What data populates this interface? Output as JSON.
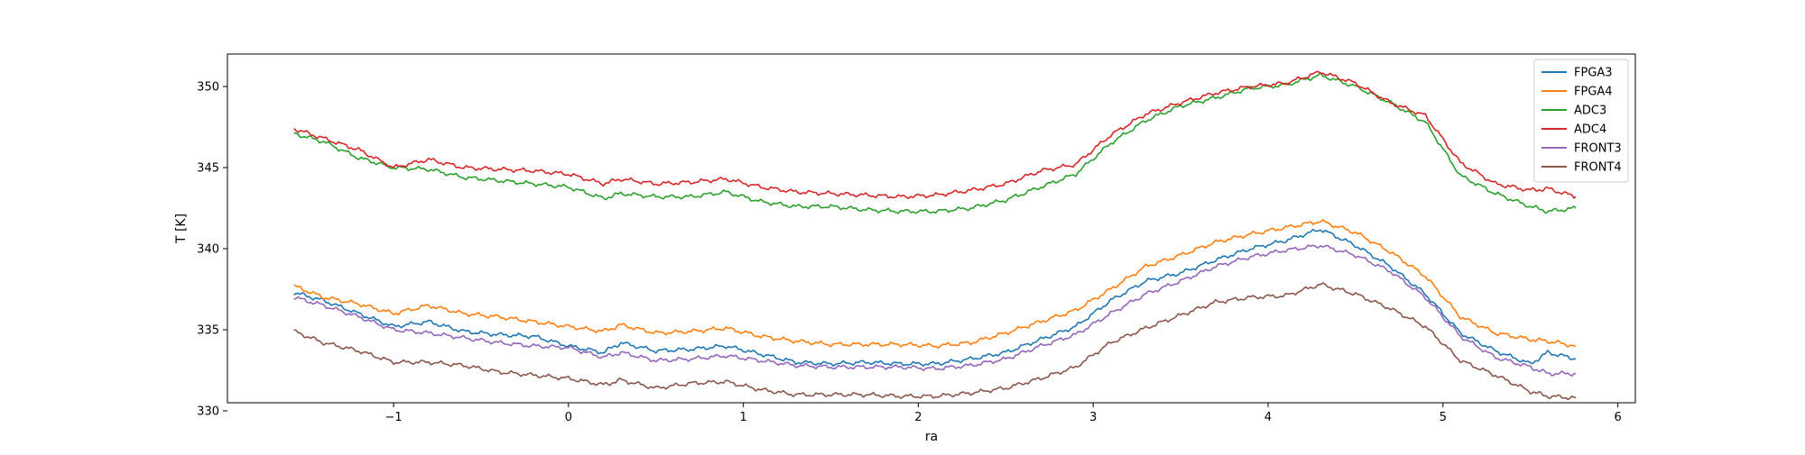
{
  "chart_data": {
    "type": "line",
    "title": "",
    "xlabel": "ra",
    "ylabel": "T [K]",
    "xlim": [
      -1.95,
      6.1
    ],
    "ylim": [
      330.5,
      352.0
    ],
    "xticks": [
      -1,
      0,
      1,
      2,
      3,
      4,
      5,
      6
    ],
    "xtick_labels": [
      "−1",
      "0",
      "1",
      "2",
      "3",
      "4",
      "5",
      "6"
    ],
    "yticks": [
      330,
      335,
      340,
      345,
      350
    ],
    "ytick_labels": [
      "330",
      "335",
      "340",
      "345",
      "350"
    ],
    "grid": false,
    "legend_position": "upper right",
    "x": [
      -1.57,
      -1.4,
      -1.2,
      -1.0,
      -0.8,
      -0.6,
      -0.4,
      -0.2,
      0.0,
      0.2,
      0.3,
      0.5,
      0.7,
      0.9,
      1.1,
      1.3,
      1.5,
      1.7,
      1.9,
      2.1,
      2.3,
      2.5,
      2.7,
      2.9,
      3.1,
      3.3,
      3.5,
      3.7,
      3.9,
      4.1,
      4.3,
      4.5,
      4.7,
      4.9,
      5.1,
      5.3,
      5.5,
      5.6,
      5.76
    ],
    "series": [
      {
        "name": "FPGA3",
        "color": "#1f77b4",
        "values": [
          337.3,
          336.8,
          336.0,
          335.2,
          335.5,
          334.9,
          334.7,
          334.6,
          334.0,
          333.6,
          334.2,
          333.7,
          333.8,
          334.0,
          333.5,
          333.0,
          332.9,
          333.0,
          332.9,
          332.9,
          333.2,
          333.6,
          334.4,
          335.2,
          336.8,
          338.0,
          338.5,
          339.3,
          340.0,
          340.5,
          341.2,
          340.2,
          338.9,
          337.2,
          334.8,
          333.7,
          332.9,
          333.6,
          333.2
        ]
      },
      {
        "name": "FPGA4",
        "color": "#ff7f0e",
        "values": [
          337.7,
          337.0,
          336.6,
          336.0,
          336.5,
          336.0,
          335.8,
          335.5,
          335.2,
          334.9,
          335.3,
          334.8,
          334.9,
          335.1,
          334.6,
          334.3,
          334.1,
          334.1,
          334.1,
          334.0,
          334.2,
          334.8,
          335.5,
          336.2,
          337.5,
          338.9,
          339.6,
          340.4,
          340.9,
          341.3,
          341.7,
          341.0,
          339.8,
          338.3,
          335.8,
          334.8,
          334.4,
          334.3,
          334.0
        ]
      },
      {
        "name": "ADC3",
        "color": "#2ca02c",
        "values": [
          347.1,
          346.6,
          345.6,
          345.0,
          344.9,
          344.4,
          344.2,
          344.0,
          343.8,
          343.1,
          343.4,
          343.2,
          343.2,
          343.5,
          342.9,
          342.6,
          342.6,
          342.4,
          342.3,
          342.3,
          342.5,
          343.0,
          343.8,
          344.6,
          346.5,
          347.9,
          348.8,
          349.3,
          349.9,
          350.1,
          350.7,
          350.0,
          349.0,
          347.8,
          344.5,
          343.4,
          342.6,
          342.3,
          342.5
        ]
      },
      {
        "name": "ADC4",
        "color": "#d62728",
        "values": [
          347.4,
          346.8,
          346.1,
          345.0,
          345.5,
          345.0,
          344.9,
          344.8,
          344.6,
          344.0,
          344.3,
          344.0,
          344.1,
          344.3,
          343.8,
          343.5,
          343.4,
          343.3,
          343.2,
          343.3,
          343.6,
          344.0,
          344.8,
          345.2,
          347.0,
          348.3,
          349.0,
          349.6,
          350.0,
          350.2,
          350.9,
          350.2,
          349.0,
          348.2,
          345.3,
          344.0,
          343.6,
          343.7,
          343.2
        ]
      },
      {
        "name": "FRONT3",
        "color": "#9467bd",
        "values": [
          337.0,
          336.5,
          335.8,
          335.0,
          334.8,
          334.5,
          334.2,
          334.0,
          333.9,
          333.3,
          333.6,
          333.1,
          333.2,
          333.4,
          333.1,
          332.8,
          332.7,
          332.7,
          332.7,
          332.6,
          332.8,
          333.2,
          334.0,
          334.7,
          336.0,
          337.2,
          338.0,
          338.9,
          339.5,
          339.9,
          340.2,
          339.6,
          338.6,
          337.0,
          334.6,
          333.3,
          332.7,
          332.3,
          332.3
        ]
      },
      {
        "name": "FRONT4",
        "color": "#8c564b",
        "values": [
          334.9,
          334.2,
          333.7,
          333.0,
          333.0,
          332.8,
          332.4,
          332.2,
          332.0,
          331.6,
          331.9,
          331.4,
          331.7,
          331.8,
          331.3,
          331.0,
          331.0,
          331.0,
          330.9,
          330.9,
          331.1,
          331.4,
          332.0,
          332.7,
          334.2,
          335.1,
          335.9,
          336.7,
          337.0,
          337.1,
          337.8,
          337.2,
          336.3,
          335.2,
          333.1,
          332.2,
          331.2,
          330.9,
          330.8
        ]
      }
    ]
  }
}
